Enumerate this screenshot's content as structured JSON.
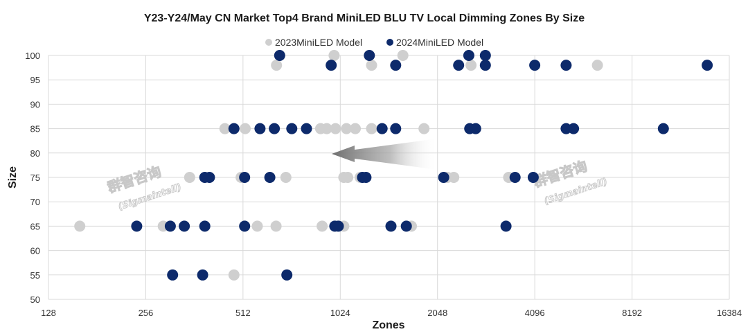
{
  "chart_data": {
    "type": "scatter",
    "title": "Y23-Y24/May CN Market Top4 Brand MiniLED BLU TV Local Dimming Zones By Size",
    "xlabel": "Zones",
    "ylabel": "Size",
    "x_scale": "log2",
    "xlim": [
      128,
      16384
    ],
    "ylim": [
      50,
      100
    ],
    "x_ticks": [
      "128",
      "256",
      "512",
      "1024",
      "2048",
      "4096",
      "8192",
      "16384"
    ],
    "y_ticks": [
      "50",
      "55",
      "60",
      "65",
      "70",
      "75",
      "80",
      "85",
      "90",
      "95",
      "100"
    ],
    "grid": true,
    "legend_position": "top",
    "colors": {
      "2023": "#cfcfcf",
      "2024": "#0d2a6b"
    },
    "series": [
      {
        "name": "2023MiniLED Model",
        "color": "#cfcfcf",
        "points": [
          [
            160,
            65
          ],
          [
            290,
            65
          ],
          [
            567,
            65
          ],
          [
            648,
            65
          ],
          [
            900,
            65
          ],
          [
            1050,
            65
          ],
          [
            1700,
            65
          ],
          [
            480,
            55
          ],
          [
            350,
            75
          ],
          [
            505,
            75
          ],
          [
            695,
            75
          ],
          [
            1050,
            75
          ],
          [
            1080,
            75
          ],
          [
            1180,
            75
          ],
          [
            2200,
            75
          ],
          [
            2300,
            75
          ],
          [
            3400,
            75
          ],
          [
            450,
            85
          ],
          [
            520,
            85
          ],
          [
            890,
            85
          ],
          [
            930,
            85
          ],
          [
            990,
            85
          ],
          [
            1070,
            85
          ],
          [
            1140,
            85
          ],
          [
            1280,
            85
          ],
          [
            1860,
            85
          ],
          [
            650,
            98
          ],
          [
            1280,
            98
          ],
          [
            2600,
            98
          ],
          [
            6400,
            98
          ],
          [
            980,
            100
          ],
          [
            1600,
            100
          ]
        ]
      },
      {
        "name": "2024MiniLED Model",
        "color": "#0d2a6b",
        "points": [
          [
            240,
            65
          ],
          [
            305,
            65
          ],
          [
            337,
            65
          ],
          [
            390,
            65
          ],
          [
            518,
            65
          ],
          [
            985,
            65
          ],
          [
            1010,
            65
          ],
          [
            1470,
            65
          ],
          [
            1640,
            65
          ],
          [
            3336,
            65
          ],
          [
            310,
            55
          ],
          [
            384,
            55
          ],
          [
            700,
            55
          ],
          [
            390,
            75
          ],
          [
            403,
            75
          ],
          [
            518,
            75
          ],
          [
            620,
            75
          ],
          [
            1200,
            75
          ],
          [
            1230,
            75
          ],
          [
            2140,
            75
          ],
          [
            3560,
            75
          ],
          [
            4050,
            75
          ],
          [
            480,
            85
          ],
          [
            578,
            85
          ],
          [
            640,
            85
          ],
          [
            725,
            85
          ],
          [
            805,
            85
          ],
          [
            1380,
            85
          ],
          [
            1520,
            85
          ],
          [
            2576,
            85
          ],
          [
            2688,
            85
          ],
          [
            5120,
            85
          ],
          [
            5400,
            85
          ],
          [
            10240,
            85
          ],
          [
            665,
            100
          ],
          [
            1260,
            100
          ],
          [
            2560,
            100
          ],
          [
            2880,
            100
          ],
          [
            960,
            98
          ],
          [
            1520,
            98
          ],
          [
            2380,
            98
          ],
          [
            2880,
            98
          ],
          [
            4096,
            98
          ],
          [
            5120,
            98
          ],
          [
            14000,
            98
          ]
        ]
      }
    ],
    "annotations": {
      "arrow": "pointing left"
    },
    "watermark": {
      "main": "群智咨询",
      "sub": "(Sigmaintell)"
    }
  }
}
